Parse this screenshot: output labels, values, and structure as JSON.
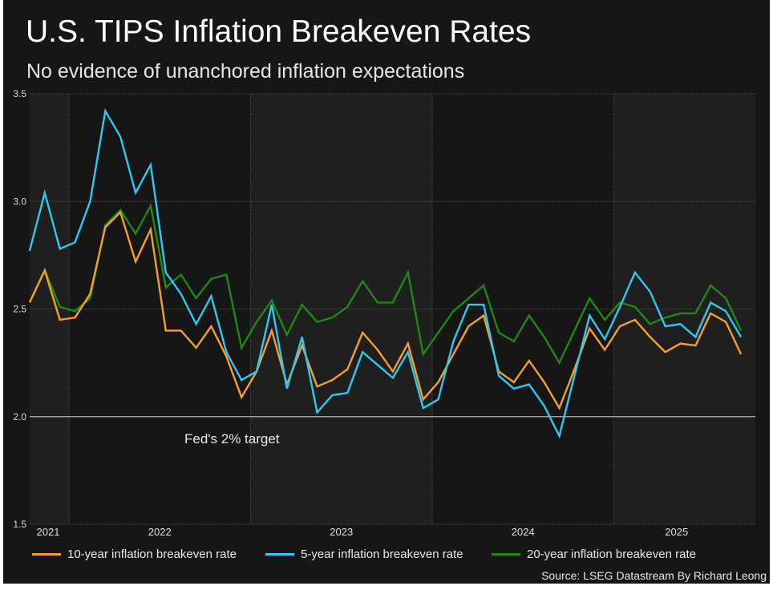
{
  "title": "U.S. TIPS Inflation Breakeven Rates",
  "subtitle": "No evidence of unanchored inflation expectations",
  "source": "Source: LSEG Datastream By Richard Leong",
  "chart_data": {
    "type": "line",
    "title": "U.S. TIPS Inflation Breakeven Rates",
    "subtitle": "No evidence of unanchored inflation expectations",
    "ylim": [
      1.5,
      3.5
    ],
    "yticks": [
      "1.5",
      "2.0",
      "2.5",
      "3.0",
      "3.5"
    ],
    "xticks": [
      "2021",
      "2022",
      "2023",
      "2024",
      "2025"
    ],
    "grid": true,
    "legend": "bottom",
    "reference_line": {
      "value": 2.0,
      "label": "Fed's 2% target"
    },
    "x": [
      "2021-10",
      "2021-11",
      "2021-12",
      "2022-01",
      "2022-02",
      "2022-03",
      "2022-04",
      "2022-05",
      "2022-06",
      "2022-07",
      "2022-08",
      "2022-09",
      "2022-10",
      "2022-11",
      "2022-12",
      "2023-01",
      "2023-02",
      "2023-03",
      "2023-04",
      "2023-05",
      "2023-06",
      "2023-07",
      "2023-08",
      "2023-09",
      "2023-10",
      "2023-11",
      "2023-12",
      "2024-01",
      "2024-02",
      "2024-03",
      "2024-04",
      "2024-05",
      "2024-06",
      "2024-07",
      "2024-08",
      "2024-09",
      "2024-10",
      "2024-11",
      "2024-12",
      "2025-01",
      "2025-02",
      "2025-03",
      "2025-04",
      "2025-05",
      "2025-06",
      "2025-07",
      "2025-08",
      "2025-09"
    ],
    "series": [
      {
        "name": "10-year inflation breakeven rate",
        "color": "#f5a02a",
        "values": [
          2.53,
          2.68,
          2.45,
          2.46,
          2.57,
          2.88,
          2.95,
          2.72,
          2.87,
          2.4,
          2.4,
          2.32,
          2.42,
          2.28,
          2.09,
          2.21,
          2.4,
          2.15,
          2.33,
          2.14,
          2.17,
          2.22,
          2.39,
          2.31,
          2.21,
          2.34,
          2.08,
          2.16,
          2.29,
          2.42,
          2.47,
          2.21,
          2.16,
          2.26,
          2.16,
          2.04,
          2.22,
          2.41,
          2.31,
          2.42,
          2.45,
          2.37,
          2.3,
          2.34,
          2.33,
          2.48,
          2.44,
          2.29
        ]
      },
      {
        "name": "5-year inflation breakeven rate",
        "color": "#2ec8f0",
        "values": [
          2.77,
          3.04,
          2.78,
          2.81,
          3.0,
          3.42,
          3.3,
          3.04,
          3.17,
          2.67,
          2.57,
          2.43,
          2.56,
          2.3,
          2.17,
          2.21,
          2.52,
          2.13,
          2.37,
          2.02,
          2.1,
          2.11,
          2.3,
          2.24,
          2.18,
          2.3,
          2.04,
          2.08,
          2.35,
          2.52,
          2.52,
          2.19,
          2.13,
          2.15,
          2.05,
          1.91,
          2.19,
          2.47,
          2.36,
          2.51,
          2.67,
          2.58,
          2.42,
          2.43,
          2.37,
          2.53,
          2.49,
          2.37
        ]
      },
      {
        "name": "20-year inflation breakeven rate",
        "color": "#1e8a14",
        "values": [
          2.53,
          2.68,
          2.51,
          2.49,
          2.55,
          2.89,
          2.96,
          2.85,
          2.98,
          2.6,
          2.66,
          2.55,
          2.64,
          2.66,
          2.32,
          2.44,
          2.54,
          2.38,
          2.52,
          2.44,
          2.46,
          2.51,
          2.63,
          2.53,
          2.53,
          2.67,
          2.29,
          2.39,
          2.49,
          2.55,
          2.61,
          2.39,
          2.35,
          2.47,
          2.37,
          2.25,
          2.4,
          2.55,
          2.45,
          2.53,
          2.51,
          2.43,
          2.46,
          2.48,
          2.48,
          2.61,
          2.55,
          2.4
        ]
      }
    ]
  }
}
